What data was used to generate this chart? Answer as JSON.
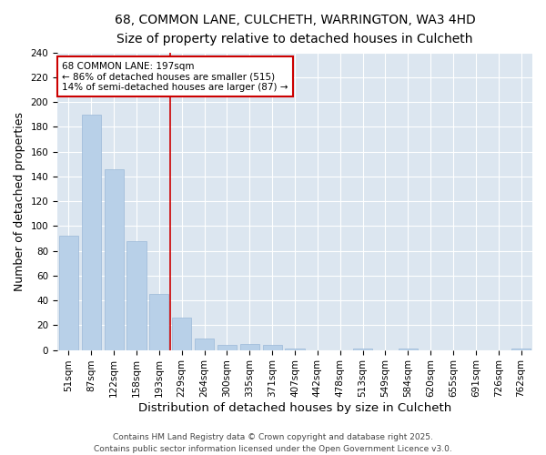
{
  "title_line1": "68, COMMON LANE, CULCHETH, WARRINGTON, WA3 4HD",
  "title_line2": "Size of property relative to detached houses in Culcheth",
  "xlabel": "Distribution of detached houses by size in Culcheth",
  "ylabel": "Number of detached properties",
  "bar_color": "#b8d0e8",
  "bar_edge_color": "#9ab8d8",
  "background_color": "#dce6f0",
  "grid_color": "#ffffff",
  "fig_background": "#ffffff",
  "categories": [
    "51sqm",
    "87sqm",
    "122sqm",
    "158sqm",
    "193sqm",
    "229sqm",
    "264sqm",
    "300sqm",
    "335sqm",
    "371sqm",
    "407sqm",
    "442sqm",
    "478sqm",
    "513sqm",
    "549sqm",
    "584sqm",
    "620sqm",
    "655sqm",
    "691sqm",
    "726sqm",
    "762sqm"
  ],
  "values": [
    92,
    190,
    146,
    88,
    45,
    26,
    9,
    4,
    5,
    4,
    1,
    0,
    0,
    1,
    0,
    1,
    0,
    0,
    0,
    0,
    1
  ],
  "ylim": [
    0,
    240
  ],
  "yticks": [
    0,
    20,
    40,
    60,
    80,
    100,
    120,
    140,
    160,
    180,
    200,
    220,
    240
  ],
  "vline_x_index": 4,
  "vline_color": "#cc0000",
  "annotation_text": "68 COMMON LANE: 197sqm\n← 86% of detached houses are smaller (515)\n14% of semi-detached houses are larger (87) →",
  "annotation_box_color": "#cc0000",
  "footer_line1": "Contains HM Land Registry data © Crown copyright and database right 2025.",
  "footer_line2": "Contains public sector information licensed under the Open Government Licence v3.0.",
  "title_fontsize": 10,
  "subtitle_fontsize": 9,
  "axis_label_fontsize": 9,
  "tick_fontsize": 7.5,
  "annotation_fontsize": 7.5,
  "footer_fontsize": 6.5
}
